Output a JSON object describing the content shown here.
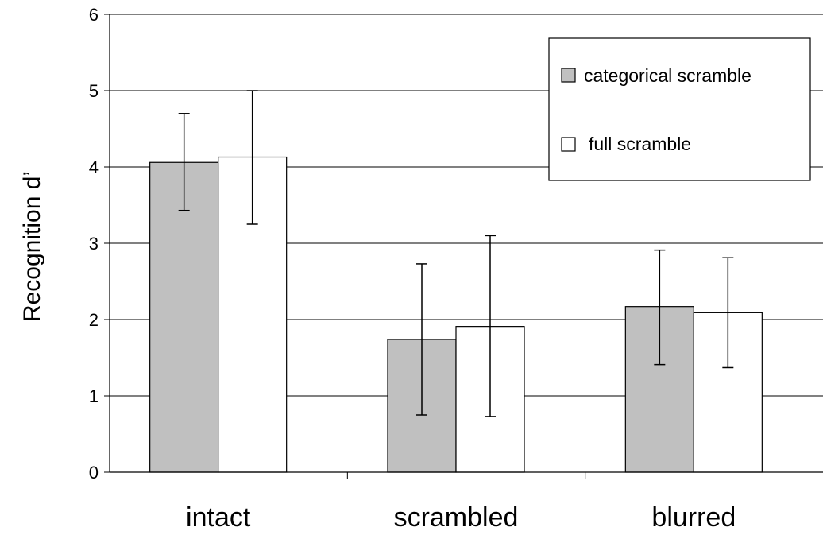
{
  "chart_data": {
    "type": "bar",
    "title": "",
    "xlabel": "",
    "ylabel": "Recognition d’",
    "categories": [
      "intact",
      "scrambled",
      "blurred"
    ],
    "ylim": [
      0,
      6
    ],
    "yticks": [
      0,
      1,
      2,
      3,
      4,
      5,
      6
    ],
    "grid": true,
    "legend_position": "top-right",
    "series": [
      {
        "name": "categorical scramble",
        "color": "#c0c0c0",
        "values": [
          4.06,
          1.74,
          2.17
        ],
        "error_low": [
          3.43,
          0.75,
          1.41
        ],
        "error_high": [
          4.7,
          2.73,
          2.91
        ]
      },
      {
        "name": "full scramble",
        "color": "#ffffff",
        "values": [
          4.13,
          1.91,
          2.09
        ],
        "error_low": [
          3.25,
          0.73,
          1.37
        ],
        "error_high": [
          5.0,
          3.1,
          2.81
        ]
      }
    ]
  }
}
